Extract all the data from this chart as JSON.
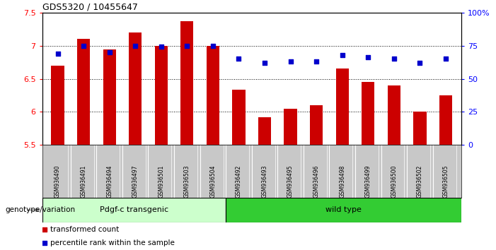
{
  "title": "GDS5320 / 10455647",
  "samples": [
    "GSM936490",
    "GSM936491",
    "GSM936494",
    "GSM936497",
    "GSM936501",
    "GSM936503",
    "GSM936504",
    "GSM936492",
    "GSM936493",
    "GSM936495",
    "GSM936496",
    "GSM936498",
    "GSM936499",
    "GSM936500",
    "GSM936502",
    "GSM936505"
  ],
  "bar_values": [
    6.7,
    7.1,
    6.94,
    7.2,
    7.0,
    7.37,
    7.0,
    6.33,
    5.92,
    6.05,
    6.1,
    6.65,
    6.45,
    6.4,
    6.0,
    6.25
  ],
  "dot_values_pct": [
    69,
    75,
    70,
    75,
    74,
    75,
    75,
    65,
    62,
    63,
    63,
    68,
    66,
    65,
    62,
    65
  ],
  "ylim_left": [
    5.5,
    7.5
  ],
  "ylim_right": [
    0,
    100
  ],
  "bar_color": "#CC0000",
  "dot_color": "#0000CC",
  "group1_label": "Pdgf-c transgenic",
  "group2_label": "wild type",
  "group1_color": "#CCFFCC",
  "group2_color": "#33CC33",
  "group1_count": 7,
  "group2_count": 9,
  "legend_bar_label": "transformed count",
  "legend_dot_label": "percentile rank within the sample",
  "genotype_label": "genotype/variation",
  "ylabel_right_ticks": [
    0,
    25,
    50,
    75,
    100
  ],
  "ylabel_right_labels": [
    "0",
    "25",
    "50",
    "75",
    "100%"
  ],
  "ylabel_left_ticks": [
    5.5,
    6.0,
    6.5,
    7.0,
    7.5
  ],
  "ylabel_left_labels": [
    "5.5",
    "6",
    "6.5",
    "7",
    "7.5"
  ],
  "tick_area_color": "#C8C8C8",
  "grid_color": "#000000",
  "spine_color": "#000000"
}
